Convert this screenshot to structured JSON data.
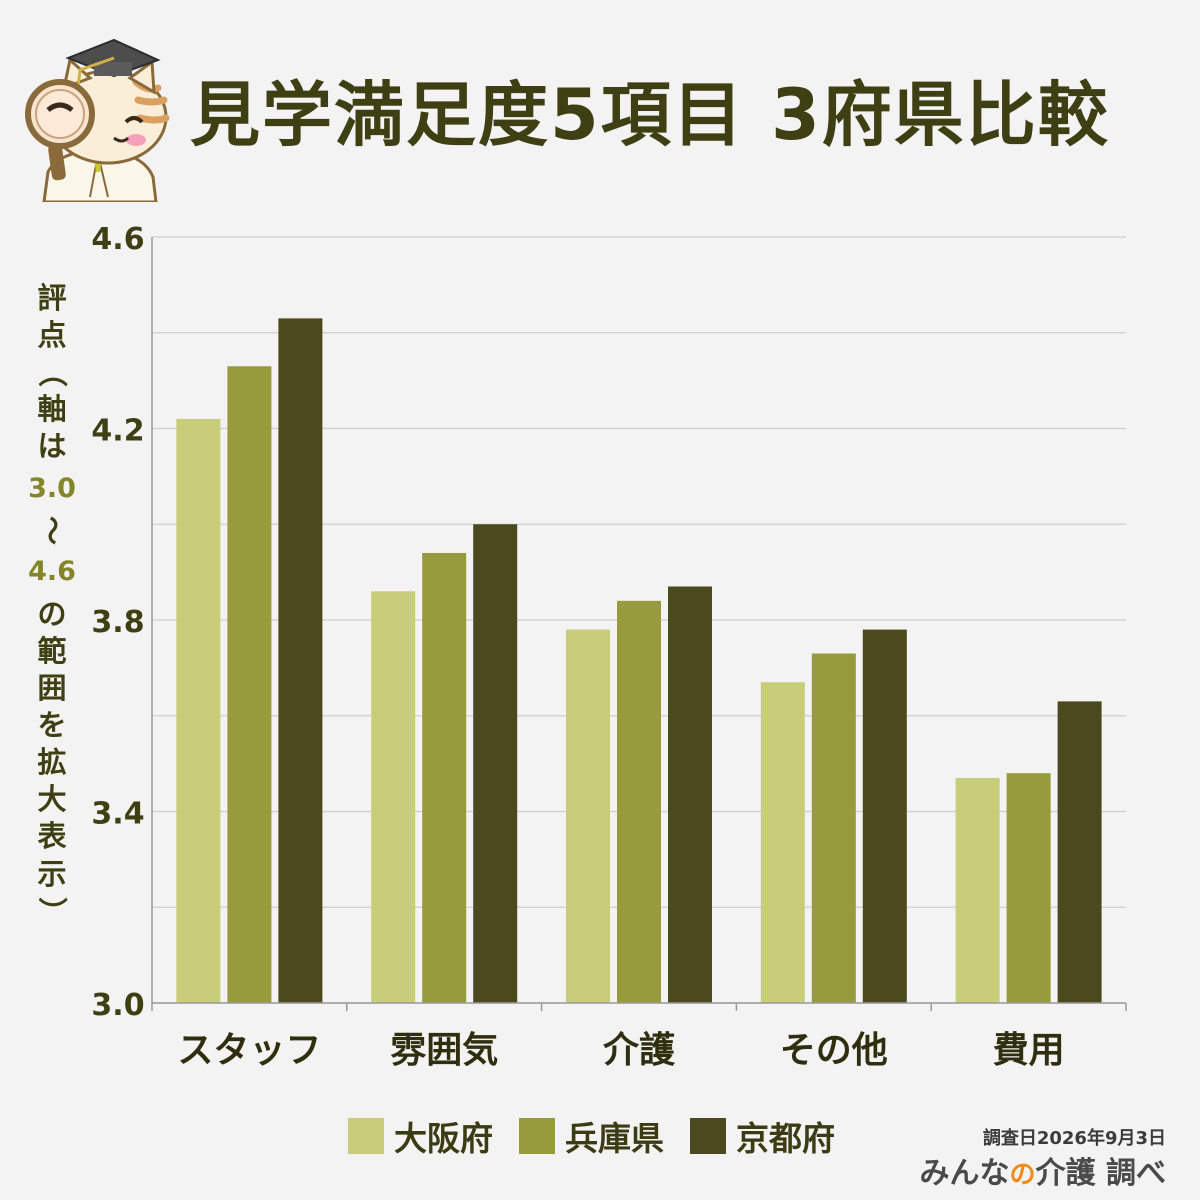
{
  "title": "見学満足度5項目 3府県比較",
  "y_axis_label": {
    "before": [
      "評",
      "点"
    ],
    "paren_open": "（",
    "middle": [
      "軸",
      "は"
    ],
    "num_min": "3.0",
    "tilde": "〜",
    "num_max": "4.6",
    "after": [
      "の",
      "範",
      "囲",
      "を",
      "拡",
      "大",
      "表",
      "示"
    ],
    "paren_close": "）"
  },
  "survey_date": "調査日2026年9月3日",
  "brand": {
    "part1": "みんな",
    "part2": "の",
    "part3": "介護",
    "part4": " 調べ"
  },
  "colors": {
    "osaka": "#c8cd7a",
    "hyogo": "#979a3d",
    "kyoto": "#4b4a1f",
    "grid": "#cfcfcf"
  },
  "icons": {
    "mascot": "cat-professor-with-magnifier-icon"
  },
  "chart_data": {
    "type": "bar",
    "title": "見学満足度5項目 3府県比較",
    "ylabel": "評点（軸は3.0〜4.6の範囲を拡大表示）",
    "xlabel": "",
    "ylim": [
      3.0,
      4.6
    ],
    "yticks": [
      3.0,
      3.4,
      3.8,
      4.2,
      4.6
    ],
    "ytick_labels": [
      "3.0",
      "3.4",
      "3.8",
      "4.2",
      "4.6"
    ],
    "grid": true,
    "legend_position": "bottom",
    "categories": [
      "スタッフ",
      "雰囲気",
      "介護",
      "その他",
      "費用"
    ],
    "series": [
      {
        "name": "大阪府",
        "color": "#c8cd7a",
        "values": [
          4.22,
          3.86,
          3.78,
          3.67,
          3.47
        ]
      },
      {
        "name": "兵庫県",
        "color": "#979a3d",
        "values": [
          4.33,
          3.94,
          3.84,
          3.73,
          3.48
        ]
      },
      {
        "name": "京都府",
        "color": "#4b4a1f",
        "values": [
          4.43,
          4.0,
          3.87,
          3.78,
          3.63
        ]
      }
    ]
  }
}
